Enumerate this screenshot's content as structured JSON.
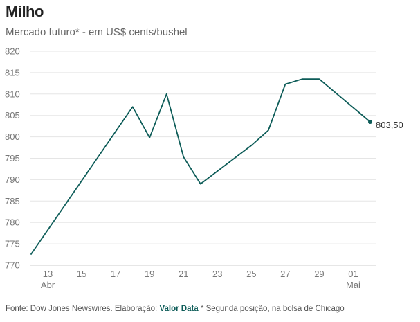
{
  "header": {
    "title": "Milho",
    "subtitle": "Mercado futuro* - em US$ cents/bushel"
  },
  "footer": {
    "source_prefix": "Fonte: Dow Jones Newswires. Elaboração:",
    "brand": "Valor Data",
    "note": "* Segunda posição, na bolsa de Chicago"
  },
  "colors": {
    "line": "#0d5c58",
    "grid": "#e5e5e5"
  },
  "chart_data": {
    "type": "line",
    "title": "Milho",
    "subtitle": "Mercado futuro* - em US$ cents/bushel",
    "xlabel": "",
    "ylabel": "",
    "ylim": [
      770,
      820
    ],
    "yticks": [
      770,
      775,
      780,
      785,
      790,
      795,
      800,
      805,
      810,
      815,
      820
    ],
    "ytick_labels": [
      "770",
      "775",
      "780",
      "785",
      "790",
      "795",
      "800",
      "805",
      "810",
      "815",
      "820"
    ],
    "grid": true,
    "x_day_index_range": [
      0,
      20
    ],
    "xticks": [
      {
        "index": 1,
        "label": "13",
        "sublabel": "Abr"
      },
      {
        "index": 3,
        "label": "15",
        "sublabel": ""
      },
      {
        "index": 5,
        "label": "17",
        "sublabel": ""
      },
      {
        "index": 7,
        "label": "19",
        "sublabel": ""
      },
      {
        "index": 9,
        "label": "21",
        "sublabel": ""
      },
      {
        "index": 11,
        "label": "23",
        "sublabel": ""
      },
      {
        "index": 13,
        "label": "25",
        "sublabel": ""
      },
      {
        "index": 15,
        "label": "27",
        "sublabel": ""
      },
      {
        "index": 17,
        "label": "29",
        "sublabel": ""
      },
      {
        "index": 19,
        "label": "01",
        "sublabel": "Mai"
      }
    ],
    "series": [
      {
        "name": "Milho",
        "points": [
          {
            "index": 0,
            "date": "12/04",
            "value": 772.5
          },
          {
            "index": 6,
            "date": "18/04",
            "value": 807.0
          },
          {
            "index": 7,
            "date": "19/04",
            "value": 799.8
          },
          {
            "index": 8,
            "date": "20/04",
            "value": 810.0
          },
          {
            "index": 9,
            "date": "21/04",
            "value": 795.3
          },
          {
            "index": 10,
            "date": "22/04",
            "value": 789.0
          },
          {
            "index": 13,
            "date": "25/04",
            "value": 798.0
          },
          {
            "index": 14,
            "date": "26/04",
            "value": 801.5
          },
          {
            "index": 15,
            "date": "27/04",
            "value": 812.3
          },
          {
            "index": 16,
            "date": "28/04",
            "value": 813.5
          },
          {
            "index": 17,
            "date": "29/04",
            "value": 813.5
          },
          {
            "index": 20,
            "date": "02/05",
            "value": 803.5
          }
        ]
      }
    ],
    "end_label": "803,50"
  }
}
